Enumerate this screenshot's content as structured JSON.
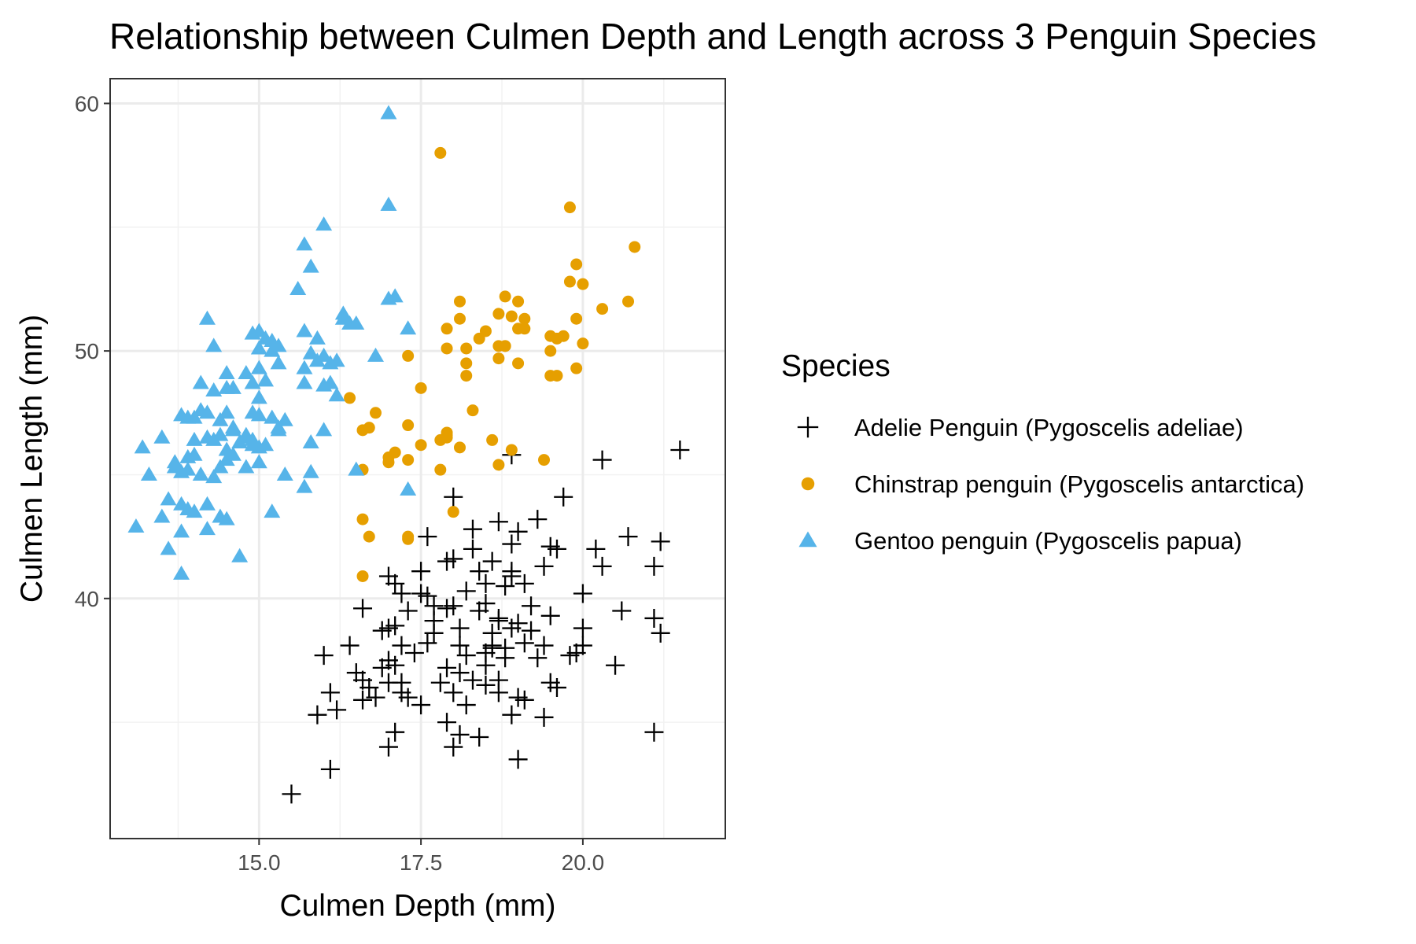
{
  "chart_data": {
    "type": "scatter",
    "title": "Relationship between Culmen Depth and Length across 3 Penguin Species",
    "xlabel": "Culmen Depth (mm)",
    "ylabel": "Culmen Length (mm)",
    "xlim": [
      12.7,
      22.2
    ],
    "ylim": [
      30.3,
      61.0
    ],
    "x_ticks": [
      15.0,
      17.5,
      20.0
    ],
    "x_tick_labels": [
      "15.0",
      "17.5",
      "20.0"
    ],
    "y_ticks": [
      40,
      50,
      60
    ],
    "y_tick_labels": [
      "40",
      "50",
      "60"
    ],
    "grid": true,
    "legend": {
      "title": "Species",
      "position": "right"
    },
    "series": [
      {
        "name": "Adelie Penguin (Pygoscelis adeliae)",
        "marker": "plus",
        "color": "#000000",
        "points": [
          [
            15.5,
            32.1
          ],
          [
            16.1,
            33.1
          ],
          [
            17.0,
            34.0
          ],
          [
            18.0,
            34.0
          ],
          [
            19.0,
            33.5
          ],
          [
            21.1,
            34.6
          ],
          [
            17.1,
            34.6
          ],
          [
            18.4,
            34.4
          ],
          [
            18.1,
            34.5
          ],
          [
            15.9,
            35.3
          ],
          [
            16.2,
            35.5
          ],
          [
            18.9,
            35.3
          ],
          [
            19.4,
            35.2
          ],
          [
            16.6,
            35.9
          ],
          [
            17.5,
            35.7
          ],
          [
            17.9,
            35.0
          ],
          [
            18.2,
            35.7
          ],
          [
            19.1,
            35.9
          ],
          [
            16.1,
            36.2
          ],
          [
            16.7,
            36.4
          ],
          [
            16.8,
            36.0
          ],
          [
            17.2,
            36.2
          ],
          [
            17.3,
            36.0
          ],
          [
            18.0,
            36.2
          ],
          [
            18.5,
            36.5
          ],
          [
            19.6,
            36.4
          ],
          [
            16.6,
            36.7
          ],
          [
            17.2,
            36.6
          ],
          [
            18.3,
            36.7
          ],
          [
            18.7,
            36.2
          ],
          [
            18.7,
            36.7
          ],
          [
            19.5,
            36.6
          ],
          [
            16.0,
            37.7
          ],
          [
            16.5,
            37.0
          ],
          [
            16.9,
            37.2
          ],
          [
            17.0,
            37.5
          ],
          [
            17.1,
            37.3
          ],
          [
            17.9,
            37.2
          ],
          [
            18.1,
            37.0
          ],
          [
            18.5,
            37.3
          ],
          [
            18.8,
            37.6
          ],
          [
            19.3,
            37.6
          ],
          [
            19.8,
            37.7
          ],
          [
            20.5,
            37.3
          ],
          [
            16.4,
            38.1
          ],
          [
            17.2,
            38.1
          ],
          [
            17.6,
            38.2
          ],
          [
            18.1,
            38.1
          ],
          [
            18.6,
            38.1
          ],
          [
            18.8,
            38.0
          ],
          [
            19.1,
            38.2
          ],
          [
            19.4,
            38.1
          ],
          [
            20.0,
            38.1
          ],
          [
            21.2,
            38.6
          ],
          [
            17.0,
            38.8
          ],
          [
            17.1,
            38.9
          ],
          [
            17.7,
            38.6
          ],
          [
            18.1,
            38.8
          ],
          [
            18.6,
            38.6
          ],
          [
            18.9,
            38.8
          ],
          [
            19.2,
            38.7
          ],
          [
            20.0,
            38.8
          ],
          [
            16.6,
            39.6
          ],
          [
            17.3,
            39.5
          ],
          [
            17.7,
            39.7
          ],
          [
            17.9,
            39.6
          ],
          [
            18.0,
            39.7
          ],
          [
            18.4,
            39.5
          ],
          [
            18.7,
            39.2
          ],
          [
            19.0,
            39.0
          ],
          [
            19.5,
            39.3
          ],
          [
            20.6,
            39.5
          ],
          [
            21.1,
            39.2
          ],
          [
            17.2,
            40.2
          ],
          [
            17.6,
            40.1
          ],
          [
            18.2,
            40.3
          ],
          [
            18.5,
            40.6
          ],
          [
            18.8,
            40.5
          ],
          [
            18.9,
            40.9
          ],
          [
            19.1,
            40.6
          ],
          [
            20.0,
            40.2
          ],
          [
            17.0,
            40.9
          ],
          [
            17.5,
            41.1
          ],
          [
            18.0,
            41.6
          ],
          [
            18.4,
            41.1
          ],
          [
            18.9,
            41.1
          ],
          [
            19.4,
            41.3
          ],
          [
            20.3,
            41.3
          ],
          [
            21.1,
            41.3
          ],
          [
            17.6,
            42.5
          ],
          [
            18.3,
            42.0
          ],
          [
            18.9,
            42.2
          ],
          [
            19.0,
            42.7
          ],
          [
            19.5,
            42.1
          ],
          [
            20.2,
            42.0
          ],
          [
            20.7,
            42.5
          ],
          [
            21.2,
            42.3
          ],
          [
            17.1,
            40.6
          ],
          [
            17.9,
            41.5
          ],
          [
            18.6,
            41.5
          ],
          [
            19.3,
            43.2
          ],
          [
            18.7,
            43.1
          ],
          [
            18.0,
            44.1
          ],
          [
            19.7,
            44.1
          ],
          [
            18.9,
            45.8
          ],
          [
            20.3,
            45.6
          ],
          [
            21.5,
            46.0
          ],
          [
            17.7,
            39.1
          ],
          [
            18.5,
            39.8
          ],
          [
            19.6,
            42.0
          ],
          [
            16.9,
            38.7
          ],
          [
            17.4,
            37.8
          ],
          [
            18.7,
            39.1
          ],
          [
            19.9,
            37.8
          ],
          [
            17.8,
            36.6
          ],
          [
            18.5,
            37.8
          ],
          [
            18.2,
            37.7
          ],
          [
            19.0,
            36.0
          ],
          [
            17.0,
            36.6
          ],
          [
            18.3,
            42.8
          ],
          [
            18.6,
            38.0
          ],
          [
            17.5,
            40.2
          ],
          [
            19.2,
            39.7
          ]
        ]
      },
      {
        "name": "Chinstrap penguin (Pygoscelis antarctica)",
        "marker": "circle",
        "color": "#E69F00",
        "points": [
          [
            17.8,
            58.0
          ],
          [
            19.8,
            55.8
          ],
          [
            20.8,
            54.2
          ],
          [
            19.9,
            53.5
          ],
          [
            19.8,
            52.8
          ],
          [
            20.0,
            52.7
          ],
          [
            20.7,
            52.0
          ],
          [
            20.3,
            51.7
          ],
          [
            19.5,
            50.6
          ],
          [
            19.6,
            50.5
          ],
          [
            19.1,
            51.3
          ],
          [
            19.0,
            52.0
          ],
          [
            18.8,
            52.2
          ],
          [
            18.1,
            52.0
          ],
          [
            18.7,
            51.5
          ],
          [
            18.9,
            51.4
          ],
          [
            19.0,
            50.9
          ],
          [
            19.1,
            50.9
          ],
          [
            19.5,
            50.0
          ],
          [
            19.7,
            50.6
          ],
          [
            19.9,
            51.3
          ],
          [
            20.0,
            50.3
          ],
          [
            18.1,
            51.3
          ],
          [
            17.9,
            50.9
          ],
          [
            18.5,
            50.8
          ],
          [
            18.4,
            50.5
          ],
          [
            18.7,
            50.2
          ],
          [
            18.8,
            50.2
          ],
          [
            18.2,
            50.1
          ],
          [
            17.9,
            50.1
          ],
          [
            17.3,
            49.8
          ],
          [
            18.7,
            49.7
          ],
          [
            18.2,
            49.5
          ],
          [
            18.2,
            49.0
          ],
          [
            19.0,
            49.5
          ],
          [
            19.5,
            49.0
          ],
          [
            19.6,
            49.0
          ],
          [
            19.9,
            49.3
          ],
          [
            17.5,
            48.5
          ],
          [
            16.4,
            48.1
          ],
          [
            16.8,
            47.5
          ],
          [
            18.3,
            47.6
          ],
          [
            16.6,
            46.8
          ],
          [
            16.7,
            46.9
          ],
          [
            17.3,
            47.0
          ],
          [
            17.5,
            46.2
          ],
          [
            17.8,
            46.4
          ],
          [
            17.9,
            46.5
          ],
          [
            17.9,
            46.7
          ],
          [
            18.6,
            46.4
          ],
          [
            18.1,
            46.1
          ],
          [
            18.9,
            46.0
          ],
          [
            19.4,
            45.6
          ],
          [
            18.7,
            45.4
          ],
          [
            17.0,
            45.7
          ],
          [
            17.1,
            45.9
          ],
          [
            17.0,
            45.5
          ],
          [
            17.3,
            45.6
          ],
          [
            17.8,
            45.2
          ],
          [
            16.6,
            45.2
          ],
          [
            18.0,
            43.5
          ],
          [
            16.6,
            43.2
          ],
          [
            16.7,
            42.5
          ],
          [
            17.3,
            42.4
          ],
          [
            16.6,
            40.9
          ],
          [
            17.9,
            46.6
          ],
          [
            17.3,
            42.5
          ],
          [
            18.8,
            50.2
          ]
        ]
      },
      {
        "name": "Gentoo penguin (Pygoscelis papua)",
        "marker": "triangle",
        "color": "#56B4E9",
        "points": [
          [
            17.0,
            59.6
          ],
          [
            17.0,
            55.9
          ],
          [
            16.0,
            55.1
          ],
          [
            15.7,
            54.3
          ],
          [
            15.8,
            53.4
          ],
          [
            15.6,
            52.5
          ],
          [
            17.0,
            52.1
          ],
          [
            17.1,
            52.2
          ],
          [
            16.3,
            51.5
          ],
          [
            16.3,
            51.3
          ],
          [
            16.5,
            51.1
          ],
          [
            14.2,
            51.3
          ],
          [
            14.9,
            50.7
          ],
          [
            15.0,
            50.8
          ],
          [
            15.1,
            50.5
          ],
          [
            15.2,
            50.4
          ],
          [
            15.3,
            50.2
          ],
          [
            15.7,
            50.8
          ],
          [
            15.9,
            50.5
          ],
          [
            16.0,
            49.8
          ],
          [
            16.1,
            49.5
          ],
          [
            16.2,
            49.6
          ],
          [
            15.8,
            49.9
          ],
          [
            15.9,
            49.6
          ],
          [
            15.0,
            50.1
          ],
          [
            14.3,
            50.2
          ],
          [
            14.1,
            48.7
          ],
          [
            14.3,
            48.4
          ],
          [
            14.5,
            48.5
          ],
          [
            14.6,
            48.5
          ],
          [
            14.5,
            49.1
          ],
          [
            14.8,
            49.1
          ],
          [
            15.0,
            49.3
          ],
          [
            14.9,
            48.7
          ],
          [
            15.1,
            48.8
          ],
          [
            15.7,
            49.3
          ],
          [
            15.3,
            49.5
          ],
          [
            15.7,
            48.7
          ],
          [
            16.0,
            48.6
          ],
          [
            16.2,
            48.2
          ],
          [
            16.8,
            49.8
          ],
          [
            17.3,
            50.9
          ],
          [
            14.0,
            47.3
          ],
          [
            14.1,
            47.6
          ],
          [
            14.2,
            47.5
          ],
          [
            14.4,
            47.2
          ],
          [
            14.5,
            47.5
          ],
          [
            14.6,
            46.8
          ],
          [
            14.8,
            46.5
          ],
          [
            14.9,
            47.5
          ],
          [
            15.0,
            47.4
          ],
          [
            15.2,
            47.3
          ],
          [
            15.3,
            46.9
          ],
          [
            15.4,
            47.2
          ],
          [
            15.0,
            48.1
          ],
          [
            14.9,
            46.2
          ],
          [
            15.1,
            46.2
          ],
          [
            15.3,
            46.8
          ],
          [
            13.8,
            47.4
          ],
          [
            13.9,
            47.3
          ],
          [
            13.2,
            46.1
          ],
          [
            13.5,
            46.5
          ],
          [
            13.7,
            45.5
          ],
          [
            13.9,
            45.7
          ],
          [
            14.0,
            45.8
          ],
          [
            14.2,
            46.5
          ],
          [
            14.3,
            46.4
          ],
          [
            14.4,
            46.6
          ],
          [
            14.5,
            46.0
          ],
          [
            14.6,
            45.8
          ],
          [
            14.7,
            46.3
          ],
          [
            14.8,
            46.6
          ],
          [
            14.9,
            46.4
          ],
          [
            15.8,
            46.3
          ],
          [
            16.0,
            46.8
          ],
          [
            16.5,
            45.2
          ],
          [
            13.7,
            45.3
          ],
          [
            13.8,
            45.1
          ],
          [
            13.9,
            45.2
          ],
          [
            14.1,
            45.0
          ],
          [
            14.3,
            44.9
          ],
          [
            14.4,
            45.3
          ],
          [
            14.5,
            45.6
          ],
          [
            14.8,
            45.3
          ],
          [
            15.0,
            45.5
          ],
          [
            15.4,
            45.0
          ],
          [
            15.8,
            45.1
          ],
          [
            15.7,
            44.5
          ],
          [
            17.3,
            44.4
          ],
          [
            13.3,
            45.0
          ],
          [
            13.5,
            43.3
          ],
          [
            13.6,
            44.0
          ],
          [
            13.8,
            43.8
          ],
          [
            14.0,
            43.5
          ],
          [
            14.2,
            43.8
          ],
          [
            14.4,
            43.3
          ],
          [
            14.5,
            43.2
          ],
          [
            13.8,
            42.7
          ],
          [
            14.2,
            42.8
          ],
          [
            13.1,
            42.9
          ],
          [
            13.6,
            42.0
          ],
          [
            14.7,
            41.7
          ],
          [
            15.2,
            43.5
          ],
          [
            13.9,
            43.6
          ],
          [
            13.8,
            41.0
          ],
          [
            15.0,
            46.1
          ],
          [
            14.0,
            46.4
          ],
          [
            14.6,
            46.9
          ],
          [
            16.4,
            51.1
          ],
          [
            15.2,
            50.0
          ],
          [
            16.1,
            48.7
          ]
        ]
      }
    ]
  }
}
